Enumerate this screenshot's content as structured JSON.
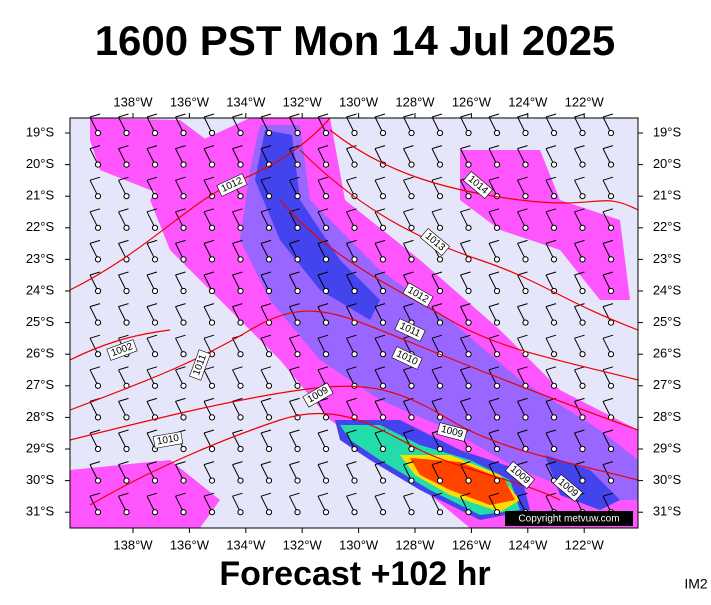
{
  "title": "1600 PST Mon 14 Jul 2025",
  "footer": "Forecast +102 hr",
  "corner": "IM2",
  "copyright": "Copyright metvuw.com",
  "map": {
    "longitudes": [
      "138°W",
      "136°W",
      "134°W",
      "132°W",
      "130°W",
      "128°W",
      "126°W",
      "124°W",
      "122°W"
    ],
    "latitudes": [
      "19°S",
      "20°S",
      "21°S",
      "22°S",
      "23°S",
      "24°S",
      "25°S",
      "26°S",
      "27°S",
      "28°S",
      "29°S",
      "30°S",
      "31°S"
    ],
    "isobar_labels": [
      "1012",
      "1014",
      "1013",
      "1012",
      "1011",
      "1010",
      "1009",
      "1002",
      "1011",
      "1010",
      "1009",
      "1009",
      "1009"
    ]
  }
}
